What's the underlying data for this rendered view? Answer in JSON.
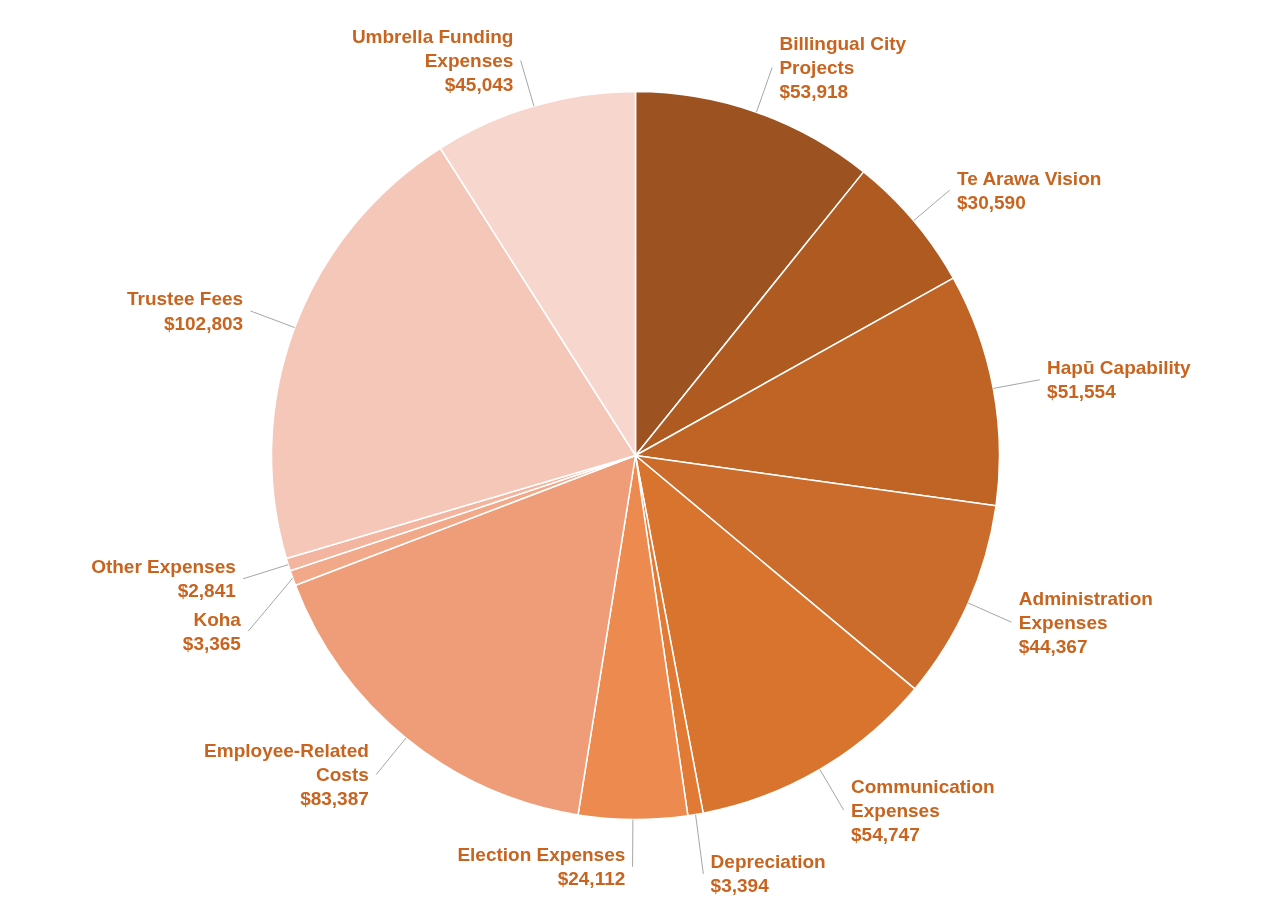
{
  "chart_data": {
    "type": "pie",
    "categories": [
      "Billingual City Projects",
      "Te Arawa Vision",
      "Hapū Capability",
      "Administration Expenses",
      "Communication Expenses",
      "Depreciation",
      "Election Expenses",
      "Employee-Related Costs",
      "Koha",
      "Other Expenses",
      "Trustee Fees",
      "Umbrella Funding Expenses"
    ],
    "values": [
      53918,
      30590,
      51554,
      44367,
      54747,
      3394,
      24112,
      83387,
      3365,
      2841,
      102803,
      45043
    ],
    "value_labels": [
      "$53,918",
      "$30,590",
      "$51,554",
      "$44,367",
      "$54,747",
      "$3,394",
      "$24,112",
      "$83,387",
      "$3,365",
      "$2,841",
      "$102,803",
      "$45,043"
    ],
    "colors": [
      "#9c5221",
      "#ae5a21",
      "#c06426",
      "#cb6c2c",
      "#d9742e",
      "#e07a35",
      "#ed8a50",
      "#ef9d78",
      "#f2a98a",
      "#f3b59f",
      "#f5c7b9",
      "#f7d6cd"
    ]
  }
}
